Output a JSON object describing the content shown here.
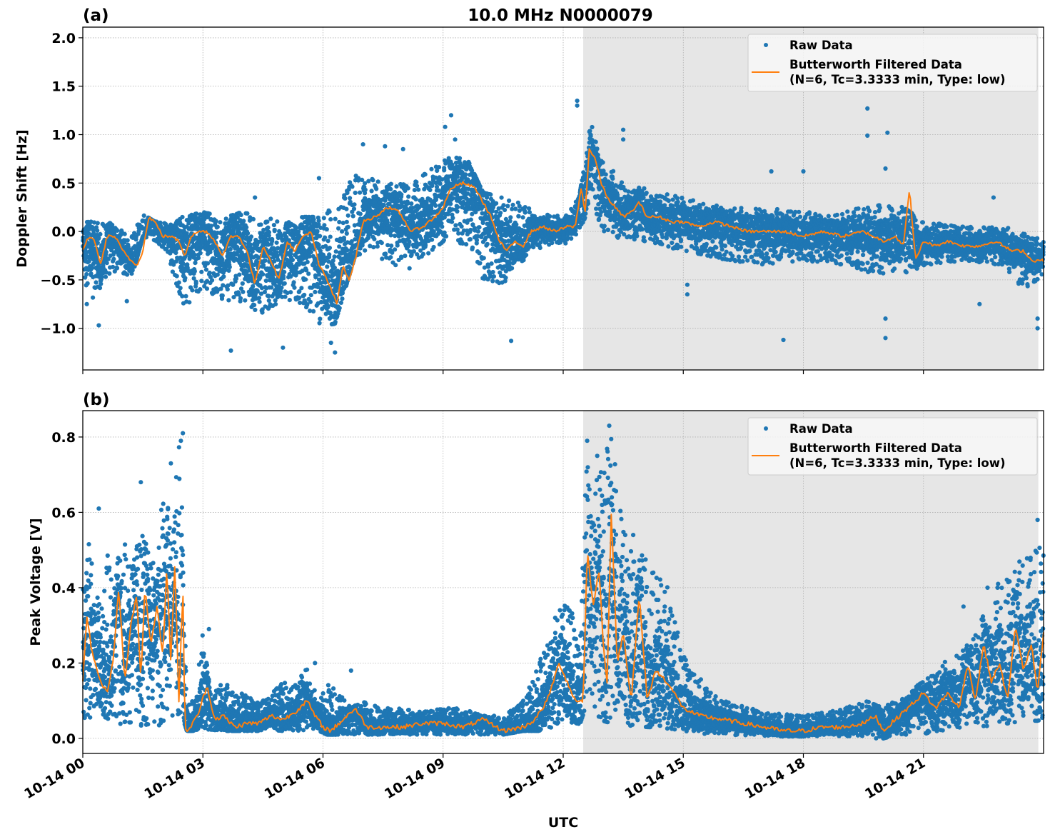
{
  "chart_data": {
    "type": "scatter",
    "title": "10.0 MHz N0000079",
    "xlabel": "UTC",
    "xlim_hours": [
      0,
      24
    ],
    "x_ticks": [
      {
        "hour": 0,
        "label": "10-14 00"
      },
      {
        "hour": 3,
        "label": "10-14 03"
      },
      {
        "hour": 6,
        "label": "10-14 06"
      },
      {
        "hour": 9,
        "label": "10-14 09"
      },
      {
        "hour": 12,
        "label": "10-14 12"
      },
      {
        "hour": 15,
        "label": "10-14 15"
      },
      {
        "hour": 18,
        "label": "10-14 18"
      },
      {
        "hour": 21,
        "label": "10-14 21"
      }
    ],
    "shaded_region_hours": [
      12.5,
      23.87
    ],
    "grid": true,
    "colors": {
      "raw": "#1f77b4",
      "filtered": "#ff7f0e",
      "shade": "#e6e6e6",
      "grid": "#b0b0b0"
    },
    "legend": {
      "placement": "top-right",
      "entries": [
        {
          "label": "Raw Data",
          "marker": "dot"
        },
        {
          "label": "Butterworth Filtered Data",
          "label2": "(N=6, Tc=3.3333 min, Type: low)",
          "marker": "line"
        }
      ]
    },
    "panels": [
      {
        "panel_label": "(a)",
        "ylabel": "Doppler Shift [Hz]",
        "ylim": [
          -1.43,
          2.11
        ],
        "y_ticks": [
          {
            "value": 2.0,
            "label": "2.0"
          },
          {
            "value": 1.5,
            "label": "1.5"
          },
          {
            "value": 1.0,
            "label": "1.0"
          },
          {
            "value": 0.5,
            "label": "0.5"
          },
          {
            "value": 0.0,
            "label": "0.0"
          },
          {
            "value": -0.5,
            "label": "−0.5"
          },
          {
            "value": -1.0,
            "label": "−1.0"
          }
        ],
        "raw_envelope": {
          "hours": [
            0,
            0.3,
            0.6,
            0.9,
            1.2,
            1.5,
            1.8,
            2.1,
            2.5,
            3.0,
            3.5,
            4.0,
            4.5,
            5.0,
            5.5,
            6.0,
            6.3,
            6.8,
            7.2,
            7.7,
            8.2,
            8.7,
            9.2,
            9.6,
            10.0,
            10.5,
            11.0,
            11.5,
            12.0,
            12.4,
            12.7,
            13.0,
            13.5,
            14.0,
            15.0,
            16.0,
            17.0,
            18.0,
            19.0,
            19.8,
            20.5,
            21.0,
            22.0,
            23.0,
            23.5,
            24.0
          ],
          "lower": [
            -0.5,
            -0.75,
            -0.45,
            -0.4,
            -0.5,
            -0.05,
            -0.1,
            -0.2,
            -0.8,
            -0.6,
            -0.7,
            -0.75,
            -0.85,
            -0.7,
            -0.75,
            -1.0,
            -0.95,
            -0.25,
            -0.2,
            -0.35,
            -0.4,
            -0.2,
            -0.05,
            -0.2,
            -0.5,
            -0.55,
            -0.3,
            -0.15,
            -0.15,
            0.0,
            0.3,
            0.0,
            -0.1,
            -0.1,
            -0.2,
            -0.3,
            -0.35,
            -0.3,
            -0.35,
            -0.45,
            -0.45,
            -0.35,
            -0.3,
            -0.35,
            -0.6,
            -0.45
          ],
          "upper": [
            0.1,
            0.1,
            0.1,
            0.05,
            -0.05,
            0.18,
            0.1,
            0.1,
            0.15,
            0.2,
            0.15,
            0.2,
            0.15,
            0.1,
            0.15,
            0.15,
            0.3,
            0.6,
            0.55,
            0.5,
            0.5,
            0.65,
            0.8,
            0.75,
            0.4,
            0.35,
            0.3,
            0.2,
            0.15,
            0.35,
            1.15,
            0.75,
            0.5,
            0.45,
            0.35,
            0.25,
            0.25,
            0.2,
            0.2,
            0.3,
            0.25,
            0.1,
            0.05,
            0.05,
            0.0,
            -0.1
          ]
        },
        "filtered": {
          "hours": [
            0,
            0.15,
            0.3,
            0.45,
            0.6,
            0.8,
            1.0,
            1.2,
            1.35,
            1.5,
            1.65,
            1.8,
            2.0,
            2.2,
            2.4,
            2.55,
            2.7,
            2.9,
            3.1,
            3.3,
            3.5,
            3.7,
            3.9,
            4.1,
            4.3,
            4.5,
            4.7,
            4.9,
            5.1,
            5.3,
            5.5,
            5.7,
            5.9,
            6.05,
            6.2,
            6.35,
            6.5,
            6.65,
            6.8,
            7.0,
            7.3,
            7.6,
            7.9,
            8.2,
            8.5,
            8.8,
            9.0,
            9.2,
            9.5,
            9.8,
            10.0,
            10.2,
            10.4,
            10.6,
            10.8,
            11.0,
            11.2,
            11.5,
            11.8,
            12.1,
            12.3,
            12.45,
            12.55,
            12.65,
            12.8,
            12.95,
            13.1,
            13.3,
            13.5,
            13.7,
            13.9,
            14.1,
            14.4,
            14.7,
            15.0,
            15.4,
            15.8,
            16.2,
            16.6,
            17.0,
            17.5,
            18.0,
            18.5,
            19.0,
            19.5,
            20.0,
            20.3,
            20.5,
            20.65,
            20.8,
            21.0,
            21.3,
            21.6,
            22.0,
            22.4,
            22.8,
            23.2,
            23.5,
            23.7,
            24.0
          ],
          "values": [
            -0.2,
            -0.05,
            -0.1,
            -0.35,
            -0.05,
            -0.05,
            -0.2,
            -0.3,
            -0.35,
            -0.2,
            0.15,
            0.1,
            -0.05,
            -0.05,
            -0.1,
            -0.25,
            -0.05,
            0.0,
            0.0,
            -0.1,
            -0.25,
            -0.05,
            -0.05,
            -0.2,
            -0.55,
            -0.15,
            -0.3,
            -0.5,
            -0.1,
            -0.2,
            -0.05,
            0.0,
            -0.35,
            -0.45,
            -0.6,
            -0.75,
            -0.35,
            -0.5,
            -0.3,
            0.1,
            0.15,
            0.25,
            0.2,
            0.0,
            0.05,
            0.15,
            0.25,
            0.45,
            0.5,
            0.45,
            0.3,
            0.15,
            -0.1,
            -0.2,
            -0.1,
            -0.15,
            0.0,
            0.05,
            0.0,
            0.05,
            0.05,
            0.45,
            0.2,
            0.85,
            0.75,
            0.5,
            0.35,
            0.25,
            0.15,
            0.2,
            0.3,
            0.15,
            0.15,
            0.1,
            0.1,
            0.05,
            0.1,
            0.05,
            0.0,
            0.0,
            0.0,
            -0.05,
            0.0,
            -0.05,
            0.0,
            -0.1,
            -0.05,
            -0.15,
            0.45,
            -0.3,
            -0.1,
            -0.15,
            -0.1,
            -0.15,
            -0.15,
            -0.1,
            -0.2,
            -0.2,
            -0.3,
            -0.3
          ]
        },
        "outliers": [
          {
            "h": 12.35,
            "v": 1.35
          },
          {
            "h": 12.35,
            "v": 1.3
          },
          {
            "h": 9.2,
            "v": 1.2
          },
          {
            "h": 9.05,
            "v": 1.08
          },
          {
            "h": 19.6,
            "v": 1.27
          },
          {
            "h": 19.6,
            "v": 0.99
          },
          {
            "h": 20.1,
            "v": 1.02
          },
          {
            "h": 20.05,
            "v": 0.65
          },
          {
            "h": 20.05,
            "v": -1.1
          },
          {
            "h": 20.05,
            "v": -0.9
          },
          {
            "h": 15.1,
            "v": -0.65
          },
          {
            "h": 15.1,
            "v": -0.55
          },
          {
            "h": 6.3,
            "v": -1.25
          },
          {
            "h": 6.2,
            "v": -1.15
          },
          {
            "h": 3.7,
            "v": -1.23
          },
          {
            "h": 5.0,
            "v": -1.2
          },
          {
            "h": 10.7,
            "v": -1.13
          },
          {
            "h": 4.3,
            "v": 0.35
          },
          {
            "h": 5.9,
            "v": 0.55
          },
          {
            "h": 6.6,
            "v": 0.42
          },
          {
            "h": 7.0,
            "v": 0.9
          },
          {
            "h": 7.55,
            "v": 0.88
          },
          {
            "h": 8.0,
            "v": 0.85
          },
          {
            "h": 13.5,
            "v": 1.05
          },
          {
            "h": 13.5,
            "v": 0.95
          },
          {
            "h": 17.2,
            "v": 0.62
          },
          {
            "h": 18.0,
            "v": 0.62
          },
          {
            "h": 22.75,
            "v": 0.35
          },
          {
            "h": 23.85,
            "v": -1.0
          },
          {
            "h": 23.85,
            "v": -0.9
          },
          {
            "h": 1.1,
            "v": -0.72
          },
          {
            "h": 0.1,
            "v": -0.75
          },
          {
            "h": 0.4,
            "v": -0.97
          },
          {
            "h": 17.5,
            "v": -1.12
          },
          {
            "h": 22.4,
            "v": -0.75
          },
          {
            "h": 9.3,
            "v": 0.95
          }
        ]
      },
      {
        "panel_label": "(b)",
        "ylabel": "Peak Voltage [V]",
        "ylim": [
          -0.04,
          0.87
        ],
        "y_ticks": [
          {
            "value": 0.8,
            "label": "0.8"
          },
          {
            "value": 0.6,
            "label": "0.6"
          },
          {
            "value": 0.4,
            "label": "0.4"
          },
          {
            "value": 0.2,
            "label": "0.2"
          },
          {
            "value": 0.0,
            "label": "0.0"
          }
        ],
        "raw_envelope": {
          "hours": [
            0,
            0.2,
            0.4,
            0.6,
            0.8,
            1.0,
            1.2,
            1.4,
            1.6,
            1.8,
            2.0,
            2.2,
            2.45,
            2.6,
            2.8,
            3.0,
            3.2,
            3.5,
            4.0,
            4.5,
            5.0,
            5.3,
            5.6,
            5.9,
            6.1,
            6.4,
            6.7,
            7.0,
            7.5,
            8.0,
            8.5,
            9.0,
            9.5,
            10.0,
            10.5,
            11.0,
            11.4,
            11.8,
            12.1,
            12.4,
            12.6,
            12.9,
            13.2,
            13.5,
            13.8,
            14.2,
            14.6,
            15.0,
            15.5,
            16.0,
            17.0,
            18.0,
            19.0,
            19.6,
            20.0,
            20.5,
            21.0,
            21.5,
            22.0,
            22.5,
            23.0,
            23.5,
            24.0
          ],
          "lower": [
            0.05,
            0.05,
            0.08,
            0.05,
            0.03,
            0.02,
            0.04,
            0.03,
            0.02,
            0.04,
            0.03,
            0.05,
            0.07,
            0.02,
            0.02,
            0.02,
            0.02,
            0.02,
            0.02,
            0.02,
            0.02,
            0.02,
            0.02,
            0.02,
            0.01,
            0.01,
            0.01,
            0.01,
            0.01,
            0.01,
            0.01,
            0.01,
            0.01,
            0.01,
            0.01,
            0.02,
            0.02,
            0.03,
            0.05,
            0.03,
            0.1,
            0.05,
            0.04,
            0.04,
            0.03,
            0.03,
            0.02,
            0.02,
            0.01,
            0.01,
            0.005,
            0.005,
            0.005,
            0.0,
            0.0,
            0.01,
            0.01,
            0.02,
            0.03,
            0.03,
            0.04,
            0.04,
            0.05
          ],
          "upper": [
            0.45,
            0.58,
            0.35,
            0.5,
            0.45,
            0.55,
            0.45,
            0.62,
            0.55,
            0.45,
            0.65,
            0.6,
            0.82,
            0.08,
            0.12,
            0.28,
            0.12,
            0.15,
            0.12,
            0.1,
            0.15,
            0.14,
            0.2,
            0.1,
            0.15,
            0.12,
            0.08,
            0.1,
            0.08,
            0.08,
            0.07,
            0.08,
            0.08,
            0.06,
            0.06,
            0.1,
            0.2,
            0.32,
            0.4,
            0.25,
            0.78,
            0.7,
            0.82,
            0.55,
            0.52,
            0.45,
            0.42,
            0.22,
            0.15,
            0.1,
            0.07,
            0.06,
            0.08,
            0.1,
            0.08,
            0.12,
            0.15,
            0.2,
            0.25,
            0.35,
            0.45,
            0.48,
            0.55
          ]
        },
        "filtered": {
          "hours": [
            0,
            0.1,
            0.2,
            0.3,
            0.45,
            0.6,
            0.75,
            0.9,
            1.05,
            1.2,
            1.35,
            1.45,
            1.55,
            1.7,
            1.85,
            2.0,
            2.1,
            2.2,
            2.3,
            2.4,
            2.5,
            2.55,
            2.7,
            2.9,
            3.1,
            3.3,
            3.5,
            3.8,
            4.1,
            4.4,
            4.7,
            5.0,
            5.3,
            5.6,
            5.8,
            6.0,
            6.2,
            6.5,
            6.8,
            7.1,
            7.5,
            8.0,
            8.5,
            9.0,
            9.5,
            10.0,
            10.5,
            11.0,
            11.3,
            11.6,
            11.9,
            12.1,
            12.3,
            12.5,
            12.6,
            12.75,
            12.9,
            13.0,
            13.1,
            13.2,
            13.35,
            13.5,
            13.7,
            13.9,
            14.1,
            14.3,
            14.6,
            15.0,
            15.4,
            16.0,
            16.5,
            17.0,
            17.5,
            18.0,
            18.5,
            19.0,
            19.5,
            19.8,
            20.0,
            20.3,
            20.6,
            21.0,
            21.3,
            21.6,
            21.9,
            22.1,
            22.3,
            22.5,
            22.7,
            22.9,
            23.1,
            23.3,
            23.5,
            23.7,
            23.85,
            24.0
          ],
          "values": [
            0.15,
            0.33,
            0.25,
            0.2,
            0.15,
            0.12,
            0.2,
            0.4,
            0.15,
            0.3,
            0.38,
            0.15,
            0.4,
            0.25,
            0.35,
            0.22,
            0.46,
            0.2,
            0.46,
            0.1,
            0.4,
            0.02,
            0.03,
            0.07,
            0.14,
            0.05,
            0.06,
            0.03,
            0.04,
            0.04,
            0.06,
            0.05,
            0.07,
            0.1,
            0.06,
            0.03,
            0.02,
            0.05,
            0.08,
            0.03,
            0.03,
            0.03,
            0.04,
            0.04,
            0.03,
            0.05,
            0.02,
            0.03,
            0.05,
            0.1,
            0.2,
            0.15,
            0.1,
            0.1,
            0.5,
            0.35,
            0.45,
            0.25,
            0.15,
            0.6,
            0.2,
            0.28,
            0.1,
            0.38,
            0.1,
            0.18,
            0.15,
            0.08,
            0.06,
            0.05,
            0.04,
            0.03,
            0.02,
            0.02,
            0.03,
            0.03,
            0.04,
            0.06,
            0.02,
            0.05,
            0.08,
            0.12,
            0.08,
            0.12,
            0.08,
            0.2,
            0.1,
            0.25,
            0.15,
            0.2,
            0.1,
            0.3,
            0.18,
            0.25,
            0.12,
            0.28
          ]
        },
        "outliers": [
          {
            "h": 2.5,
            "v": 0.81
          },
          {
            "h": 2.45,
            "v": 0.79
          },
          {
            "h": 2.2,
            "v": 0.73
          },
          {
            "h": 1.45,
            "v": 0.68
          },
          {
            "h": 0.4,
            "v": 0.61
          },
          {
            "h": 13.15,
            "v": 0.83
          },
          {
            "h": 12.6,
            "v": 0.79
          },
          {
            "h": 12.85,
            "v": 0.75
          },
          {
            "h": 13.55,
            "v": 0.54
          },
          {
            "h": 13.75,
            "v": 0.54
          },
          {
            "h": 14.25,
            "v": 0.44
          },
          {
            "h": 11.8,
            "v": 0.32
          },
          {
            "h": 3.15,
            "v": 0.29
          },
          {
            "h": 5.8,
            "v": 0.2
          },
          {
            "h": 6.7,
            "v": 0.18
          },
          {
            "h": 23.85,
            "v": 0.58
          },
          {
            "h": 23.4,
            "v": 0.44
          },
          {
            "h": 22.85,
            "v": 0.4
          },
          {
            "h": 22.6,
            "v": 0.4
          },
          {
            "h": 22.0,
            "v": 0.35
          }
        ]
      }
    ]
  }
}
